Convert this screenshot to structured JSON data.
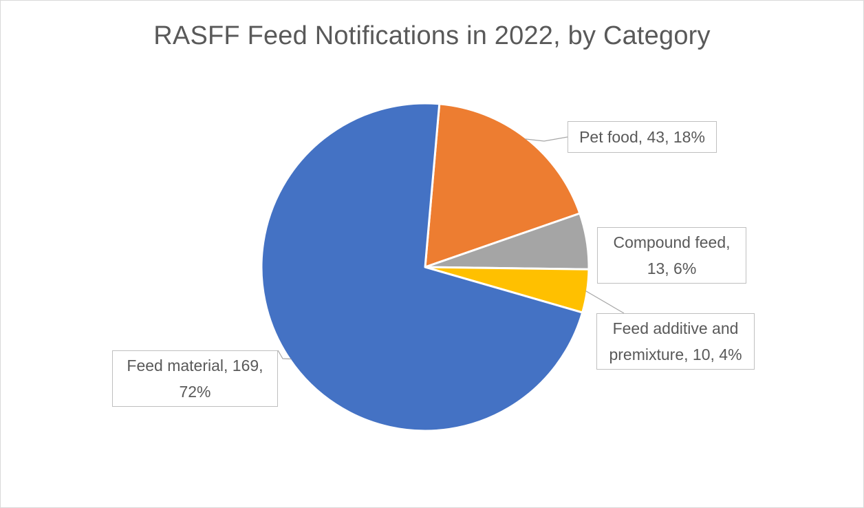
{
  "chart_data": {
    "type": "pie",
    "title": "RASFF Feed Notifications in 2022, by Category",
    "slices": [
      {
        "name": "Feed material",
        "value": 169,
        "percent": "72%",
        "color": "#4472c4",
        "label_lines": [
          "Feed material, 169,",
          "72%"
        ]
      },
      {
        "name": "Pet food",
        "value": 43,
        "percent": "18%",
        "color": "#ed7d31",
        "label_lines": [
          "Pet food, 43, 18%"
        ]
      },
      {
        "name": "Compound feed",
        "value": 13,
        "percent": "6%",
        "color": "#a5a5a5",
        "label_lines": [
          "Compound feed,",
          "13, 6%"
        ]
      },
      {
        "name": "Feed additive and premixture",
        "value": 10,
        "percent": "4%",
        "color": "#ffc000",
        "label_lines": [
          "Feed additive and",
          "premixture, 10, 4%"
        ]
      }
    ],
    "start_angle_deg": 5,
    "direction": "clockwise",
    "legend": "none"
  }
}
